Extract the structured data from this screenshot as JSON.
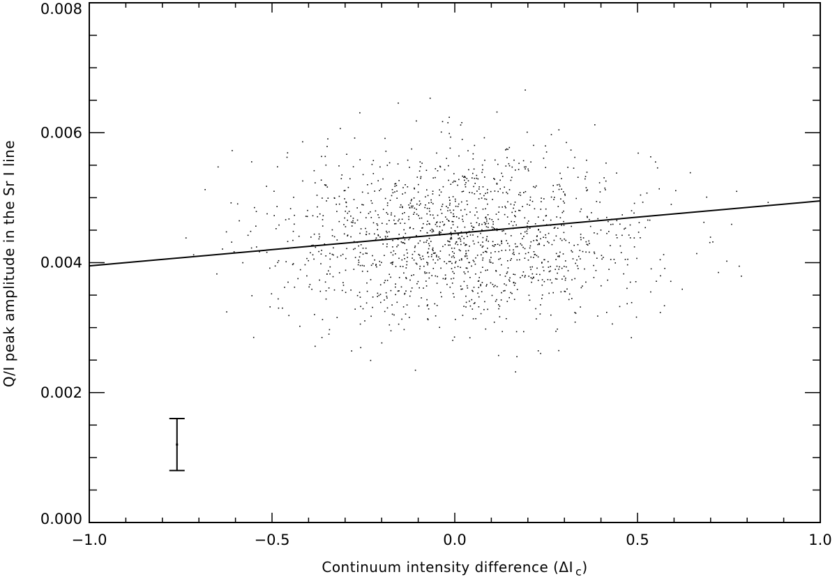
{
  "chart_data": {
    "type": "scatter",
    "xlabel": "Continuum intensity difference (ΔI c)",
    "xlabel_main": "Continuum intensity difference (ΔI",
    "xlabel_sub": "c",
    "xlabel_close": ")",
    "ylabel": "Q/I peak amplitude in the Sr I line",
    "xlim": [
      -1.0,
      1.0
    ],
    "ylim": [
      0.0,
      0.008
    ],
    "x_tick_labels": [
      "−1.0",
      "−0.5",
      "0.0",
      "0.5",
      "1.0"
    ],
    "x_tick_values": [
      -1.0,
      -0.5,
      0.0,
      0.5,
      1.0
    ],
    "y_tick_labels": [
      "0.000",
      "0.002",
      "0.004",
      "0.006",
      "0.008"
    ],
    "y_tick_values": [
      0.0,
      0.002,
      0.004,
      0.006,
      0.008
    ],
    "grid": false,
    "scatter_cloud": {
      "point_count": 1500,
      "x_mean": 0.02,
      "x_std": 0.26,
      "y_mean": 0.0044,
      "y_std": 0.00068,
      "x_range": [
        -0.86,
        0.87
      ],
      "y_range": [
        0.0022,
        0.0068
      ]
    },
    "fit_line": {
      "x": [
        -1.0,
        1.0
      ],
      "y": [
        0.00395,
        0.00495
      ]
    },
    "error_bar": {
      "x": -0.76,
      "y": 0.0012,
      "y_low": 0.0008,
      "y_high": 0.0016
    }
  }
}
